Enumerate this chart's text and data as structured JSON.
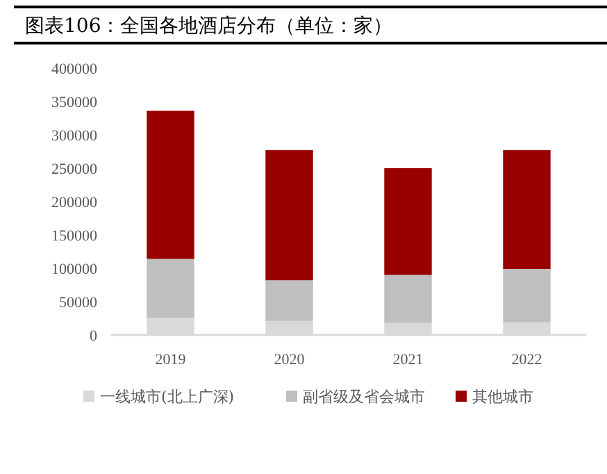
{
  "chart_data": {
    "type": "bar",
    "title": "图表106：全国各地酒店分布（单位：家）",
    "categories": [
      "2019",
      "2020",
      "2021",
      "2022"
    ],
    "stacked": true,
    "series": [
      {
        "name": "一线城市(北上广深)",
        "color": "#d9d9d9",
        "values": [
          26000,
          21000,
          18000,
          19000
        ]
      },
      {
        "name": "副省级及省会城市",
        "color": "#bfbfbf",
        "values": [
          88000,
          61000,
          72000,
          80000
        ]
      },
      {
        "name": "其他城市",
        "color": "#990000",
        "values": [
          222000,
          195000,
          160000,
          178000
        ]
      }
    ],
    "ylim": [
      0,
      400000
    ],
    "yticks": [
      0,
      50000,
      100000,
      150000,
      200000,
      250000,
      300000,
      350000,
      400000
    ],
    "grid": false,
    "legend": "bottom"
  }
}
